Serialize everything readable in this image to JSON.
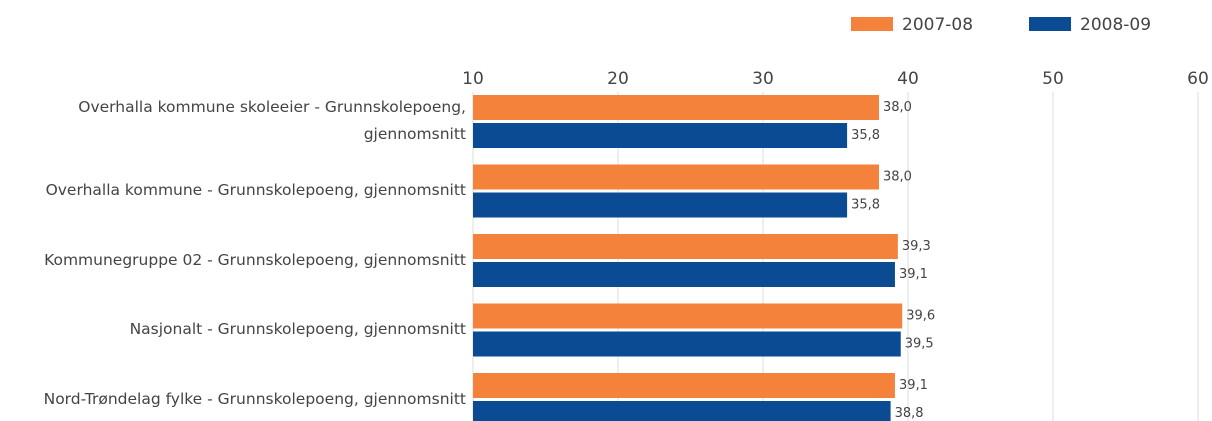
{
  "chart_data": {
    "type": "bar",
    "orientation": "horizontal",
    "categories": [
      "Overhalla kommune skoleeier - Grunnskolepoeng, gjennomsnitt",
      "Overhalla kommune - Grunnskolepoeng, gjennomsnitt",
      "Kommunegruppe 02 - Grunnskolepoeng, gjennomsnitt",
      "Nasjonalt - Grunnskolepoeng, gjennomsnitt",
      "Nord-Trøndelag fylke - Grunnskolepoeng, gjennomsnitt"
    ],
    "series": [
      {
        "name": "2007-08",
        "color": "#f5823a",
        "values": [
          38.0,
          38.0,
          39.3,
          39.6,
          39.1
        ],
        "value_labels": [
          "38,0",
          "38,0",
          "39,3",
          "39,6",
          "39,1"
        ]
      },
      {
        "name": "2008-09",
        "color": "#0a4b93",
        "values": [
          35.8,
          35.8,
          39.1,
          39.5,
          38.8
        ],
        "value_labels": [
          "35,8",
          "35,8",
          "39,1",
          "39,5",
          "38,8"
        ]
      }
    ],
    "xlim": [
      10,
      60
    ],
    "xticks": [
      10,
      20,
      30,
      40,
      50,
      60
    ],
    "grid": true,
    "legend": "top-right"
  }
}
